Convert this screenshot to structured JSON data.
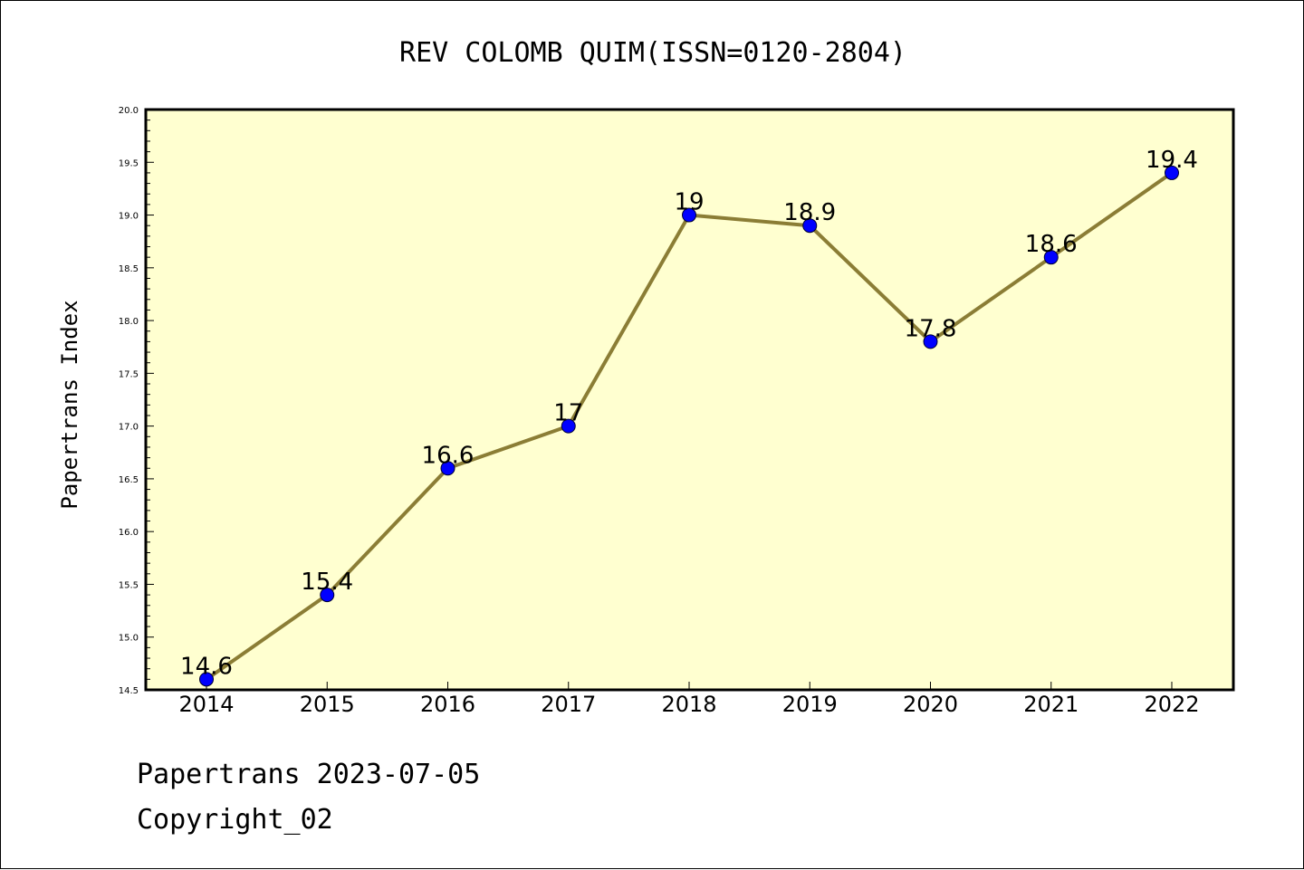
{
  "chart_data": {
    "type": "line",
    "title": "REV COLOMB QUIM(ISSN=0120-2804)",
    "xlabel": "",
    "ylabel": "Papertrans Index",
    "x": [
      "2014",
      "2015",
      "2016",
      "2017",
      "2018",
      "2019",
      "2020",
      "2021",
      "2022"
    ],
    "values": [
      14.6,
      15.4,
      16.6,
      17,
      19,
      18.9,
      17.8,
      18.6,
      19.4
    ],
    "data_labels": [
      "14.6",
      "15.4",
      "16.6",
      "17",
      "19",
      "18.9",
      "17.8",
      "18.6",
      "19.4"
    ],
    "ylim": [
      14.5,
      20.0
    ],
    "yticks": [
      "14.5",
      "15.0",
      "15.5",
      "16.0",
      "16.5",
      "17.0",
      "17.5",
      "18.0",
      "18.5",
      "19.0",
      "19.5",
      "20.0"
    ],
    "grid": false,
    "colors": {
      "plot_background": "#ffffd0",
      "line": "#8b7d35",
      "marker": "#0000ff"
    }
  },
  "footer": {
    "line1": "Papertrans 2023-07-05",
    "line2": "Copyright_02"
  }
}
